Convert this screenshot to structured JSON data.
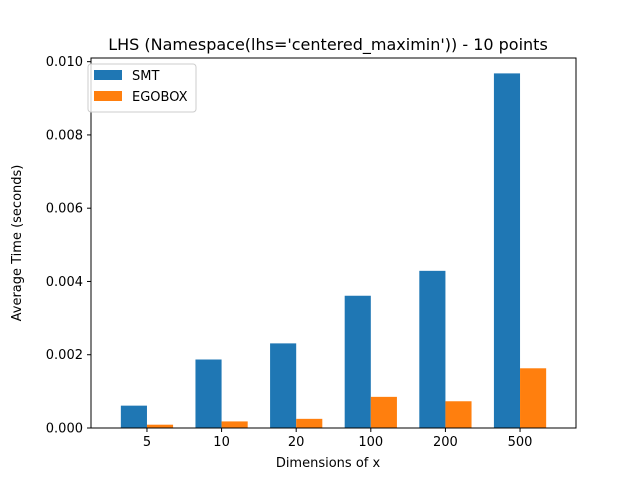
{
  "chart_data": {
    "type": "bar",
    "title": "LHS (Namespace(lhs='centered_maximin')) - 10 points",
    "xlabel": "Dimensions of x",
    "ylabel": "Average Time (seconds)",
    "categories": [
      "5",
      "10",
      "20",
      "100",
      "200",
      "500"
    ],
    "series": [
      {
        "name": "SMT",
        "color": "#1f77b4",
        "values": [
          0.00061,
          0.00187,
          0.00231,
          0.00361,
          0.00429,
          0.00968
        ]
      },
      {
        "name": "EGOBOX",
        "color": "#ff7f0e",
        "values": [
          9e-05,
          0.00018,
          0.00025,
          0.00085,
          0.00073,
          0.00163
        ]
      }
    ],
    "ylim": [
      0,
      0.0101
    ],
    "yticks": [
      "0.000",
      "0.002",
      "0.004",
      "0.006",
      "0.008",
      "0.010"
    ],
    "ytick_values": [
      0,
      0.002,
      0.004,
      0.006,
      0.008,
      0.01
    ],
    "grid": false,
    "legend_position": "top-left"
  }
}
